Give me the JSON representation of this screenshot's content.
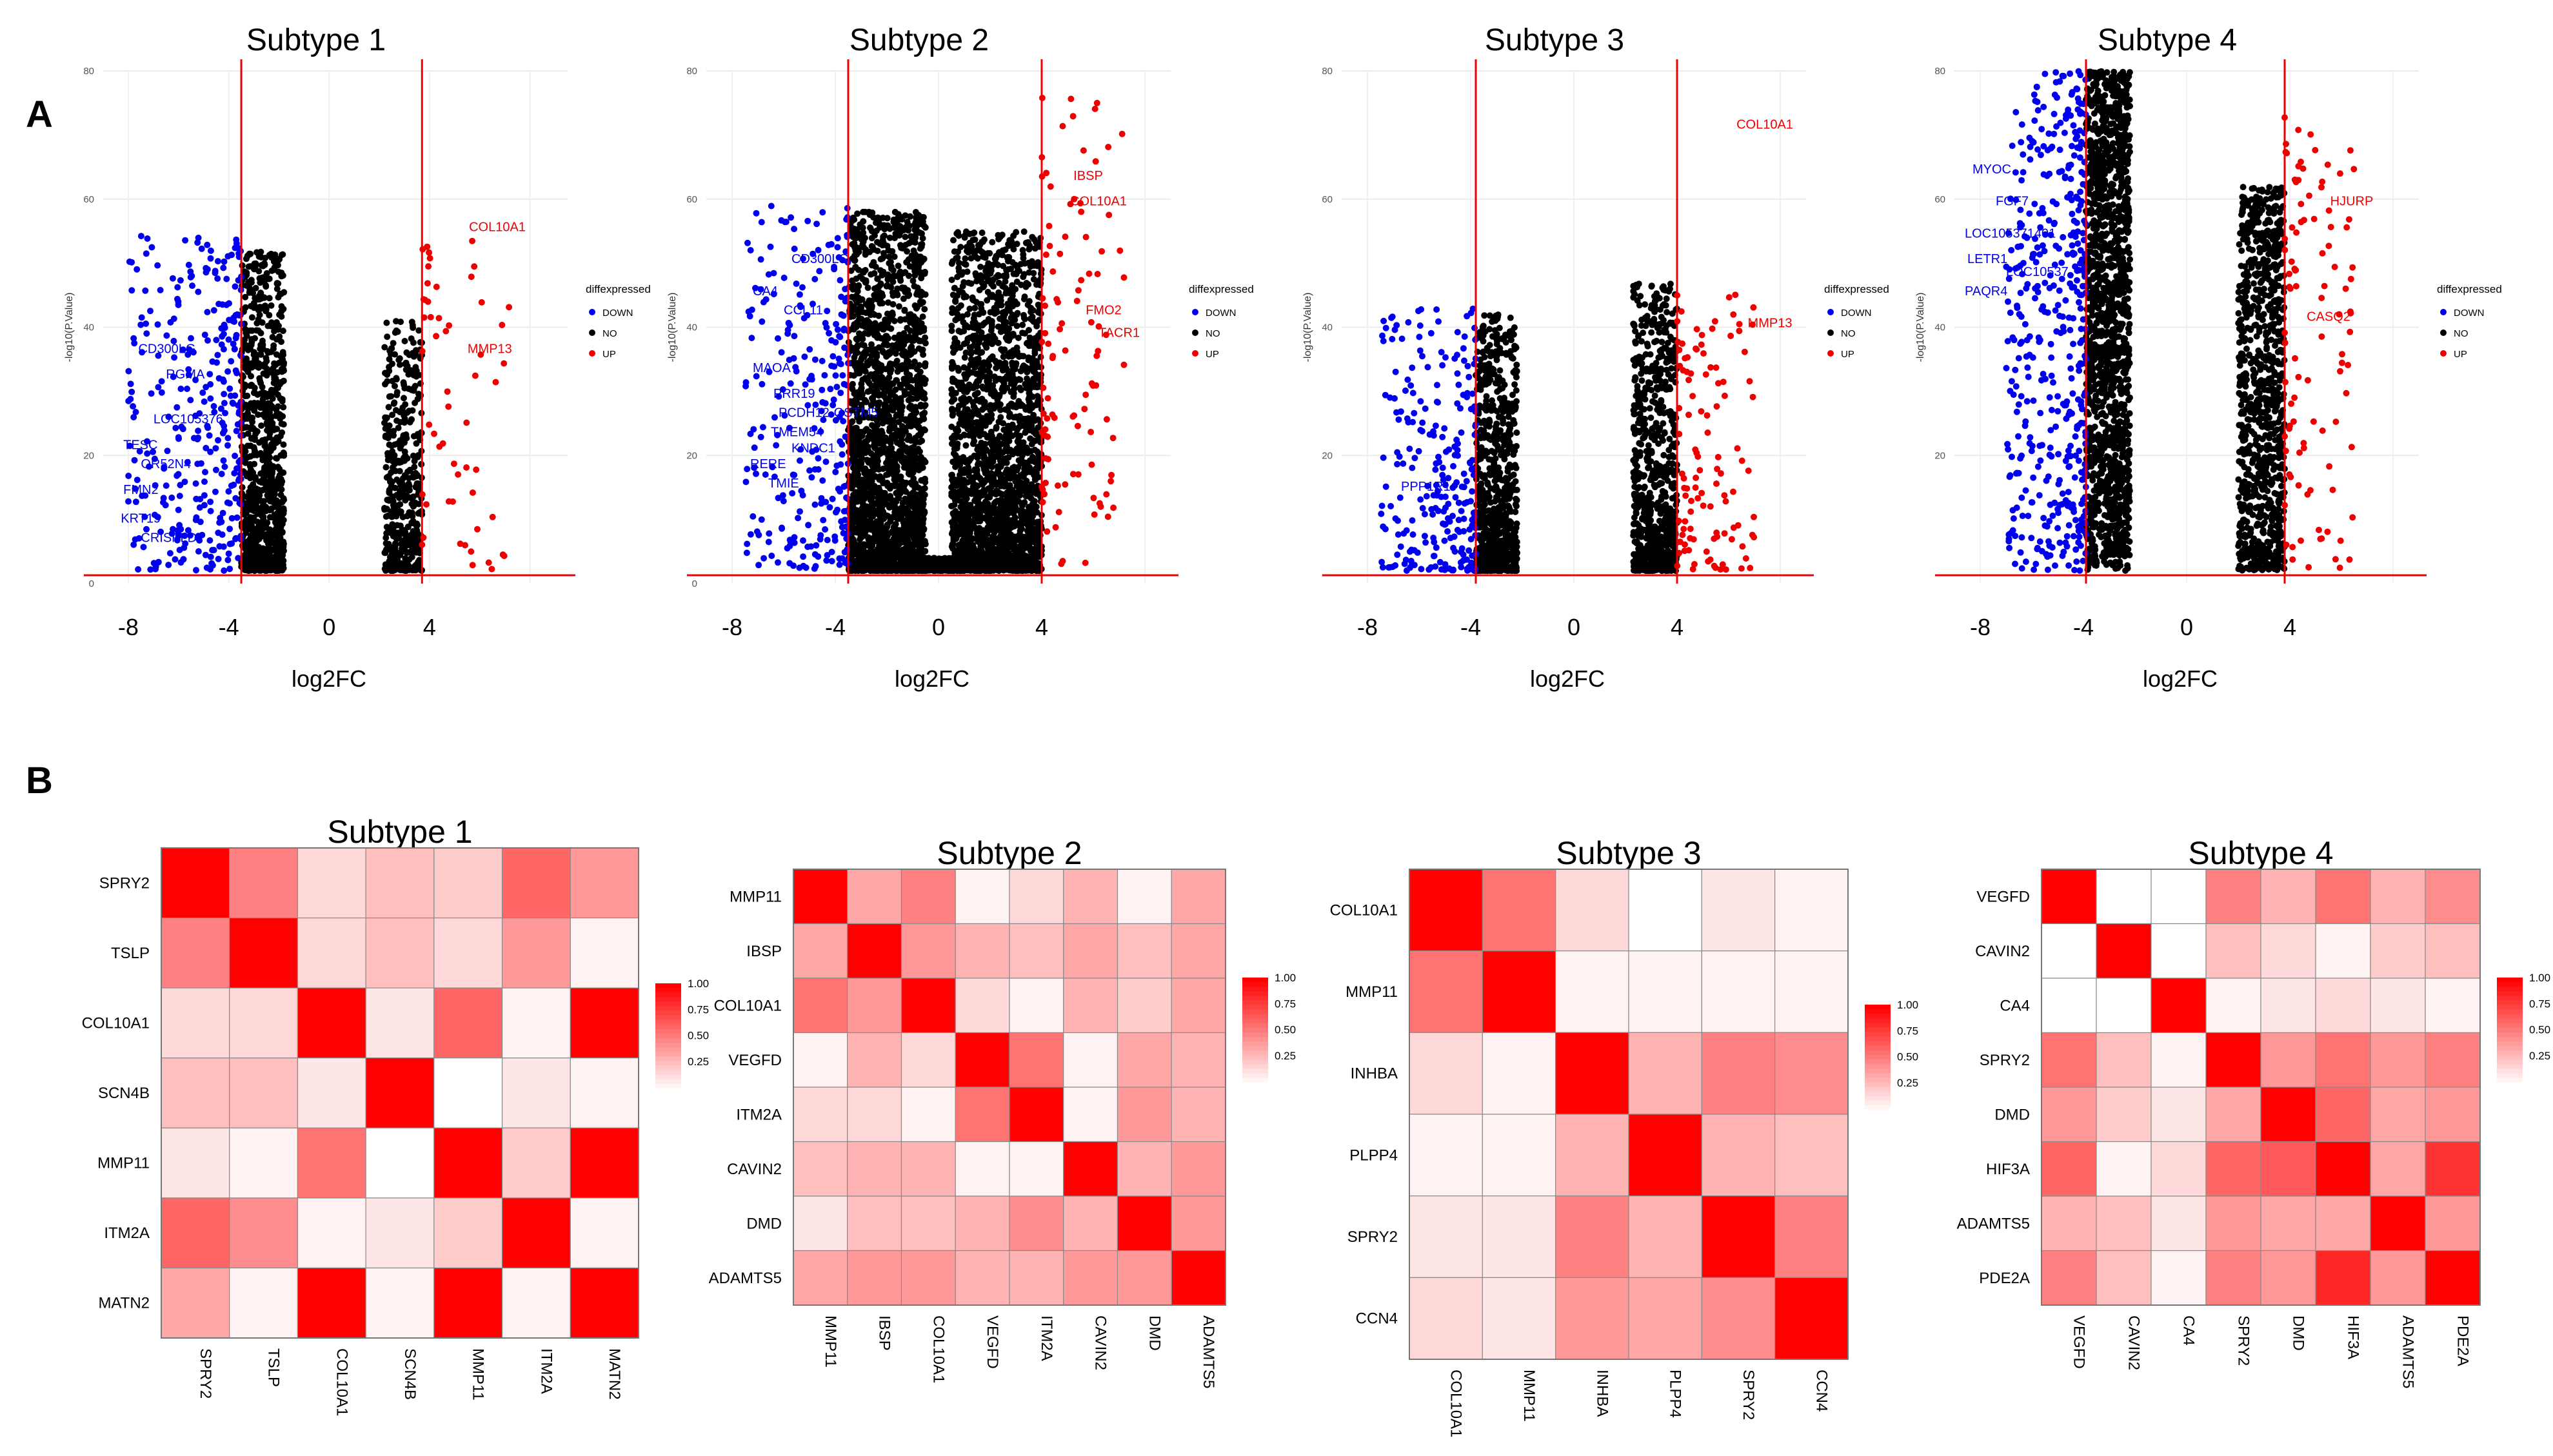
{
  "figure": {
    "panel_labels": [
      "A",
      "B"
    ]
  },
  "colors": {
    "down": "#0000ee",
    "no": "#000000",
    "up": "#ee0000",
    "threshold": "#ee0000",
    "heat_high": "#ff0000",
    "heat_low": "#ffffff",
    "cell_border": "#8a8a8a"
  },
  "legend": {
    "title": "diffexpressed",
    "items": [
      "DOWN",
      "NO",
      "UP"
    ]
  },
  "colorbar": {
    "ticks": [
      "1.00",
      "0.75",
      "0.50",
      "0.25"
    ]
  },
  "chart_data": [
    {
      "id": "volcano-1",
      "type": "scatter",
      "title": "Subtype 1",
      "xlabel": "log2FC",
      "ylabel": "-log10(P.Value)",
      "xlim": [
        -9,
        9.5
      ],
      "ylim": [
        0,
        80
      ],
      "x_ticks": [
        "-8",
        "-4",
        "0",
        "4"
      ],
      "y_ticks": [
        "0",
        "20",
        "40",
        "60",
        "80"
      ],
      "thresholds": {
        "vertical": [
          -3.5,
          3.7
        ],
        "horizontal": 1.3
      },
      "clouds": [
        {
          "group": "NO",
          "x": [
            -3.5,
            -1.8
          ],
          "peak": 52,
          "n": 900,
          "bias": 1.6
        },
        {
          "group": "DOWN",
          "x": [
            -8,
            -3.5
          ],
          "peak": 55,
          "n": 330,
          "bias": 1.3
        },
        {
          "group": "NO",
          "x": [
            2.2,
            3.7
          ],
          "peak": 41,
          "n": 430,
          "bias": 1.5
        },
        {
          "group": "UP",
          "x": [
            3.7,
            7.2
          ],
          "peak": 55,
          "n": 55,
          "bias": 1.2
        }
      ],
      "labels": [
        {
          "text": "COL10A1",
          "x": 6.7,
          "y": 55,
          "group": "UP"
        },
        {
          "text": "MMP13",
          "x": 6.4,
          "y": 36,
          "group": "UP"
        },
        {
          "text": "CD300LG",
          "x": -7.6,
          "y": 36,
          "group": "DOWN"
        },
        {
          "text": "RGMA",
          "x": -6.5,
          "y": 32,
          "group": "DOWN"
        },
        {
          "text": "LOC105376",
          "x": -7.0,
          "y": 25,
          "group": "DOWN"
        },
        {
          "text": "TESC",
          "x": -8.2,
          "y": 21,
          "group": "DOWN"
        },
        {
          "text": "OR52N4",
          "x": -7.5,
          "y": 18,
          "group": "DOWN"
        },
        {
          "text": "FMN2",
          "x": -8.2,
          "y": 14,
          "group": "DOWN"
        },
        {
          "text": "KRT19",
          "x": -8.3,
          "y": 9.5,
          "group": "DOWN"
        },
        {
          "text": "CRISPLD",
          "x": -7.5,
          "y": 6.5,
          "group": "DOWN"
        }
      ]
    },
    {
      "id": "volcano-2",
      "type": "scatter",
      "title": "Subtype 2",
      "xlabel": "log2FC",
      "ylabel": "-log10(P.Value)",
      "xlim": [
        -9,
        9
      ],
      "ylim": [
        0,
        80
      ],
      "x_ticks": [
        "-8",
        "-4",
        "0",
        "4"
      ],
      "y_ticks": [
        "0",
        "20",
        "40",
        "60",
        "80"
      ],
      "thresholds": {
        "vertical": [
          -3.5,
          4
        ],
        "horizontal": 1.3
      },
      "clouds": [
        {
          "group": "NO",
          "x": [
            -3.5,
            -0.5
          ],
          "peak": 58,
          "n": 2200,
          "bias": 1.9
        },
        {
          "group": "NO",
          "x": [
            0.5,
            4.0
          ],
          "peak": 55,
          "n": 2200,
          "bias": 1.9
        },
        {
          "group": "NO",
          "x": [
            -1.0,
            1.0
          ],
          "peak": 4,
          "n": 500,
          "bias": 1.5
        },
        {
          "group": "DOWN",
          "x": [
            -7.5,
            -3.5
          ],
          "peak": 59,
          "n": 260,
          "bias": 1.3
        },
        {
          "group": "UP",
          "x": [
            4.0,
            7.2
          ],
          "peak": 76,
          "n": 100,
          "bias": 1.1
        }
      ],
      "labels": [
        {
          "text": "IBSP",
          "x": 5.8,
          "y": 63,
          "group": "UP"
        },
        {
          "text": "COL10A1",
          "x": 6.2,
          "y": 59,
          "group": "UP"
        },
        {
          "text": "FMO2",
          "x": 6.4,
          "y": 42,
          "group": "UP"
        },
        {
          "text": "TACR1",
          "x": 7.0,
          "y": 38.5,
          "group": "UP"
        },
        {
          "text": "CD300LG",
          "x": -5.7,
          "y": 50,
          "group": "DOWN"
        },
        {
          "text": "CA4",
          "x": -7.2,
          "y": 45,
          "group": "DOWN"
        },
        {
          "text": "CCL11",
          "x": -6.0,
          "y": 42,
          "group": "DOWN"
        },
        {
          "text": "MAOA",
          "x": -7.2,
          "y": 33,
          "group": "DOWN"
        },
        {
          "text": "PRR19",
          "x": -6.4,
          "y": 29,
          "group": "DOWN"
        },
        {
          "text": "PCDH12-GSTM5",
          "x": -6.2,
          "y": 26,
          "group": "DOWN"
        },
        {
          "text": "TMEM54",
          "x": -6.5,
          "y": 23,
          "group": "DOWN"
        },
        {
          "text": "KNDC1",
          "x": -5.7,
          "y": 20.5,
          "group": "DOWN"
        },
        {
          "text": "RERE",
          "x": -7.3,
          "y": 18,
          "group": "DOWN"
        },
        {
          "text": "TMIE",
          "x": -6.6,
          "y": 15,
          "group": "DOWN"
        }
      ]
    },
    {
      "id": "volcano-3",
      "type": "scatter",
      "title": "Subtype 3",
      "xlabel": "log2FC",
      "ylabel": "-log10(P.Value)",
      "xlim": [
        -9,
        9
      ],
      "ylim": [
        0,
        80
      ],
      "x_ticks": [
        "-8",
        "-4",
        "0",
        "4"
      ],
      "y_ticks": [
        "20",
        "40",
        "60",
        "80"
      ],
      "thresholds": {
        "vertical": [
          -3.8,
          4
        ],
        "horizontal": 1.3
      },
      "clouds": [
        {
          "group": "NO",
          "x": [
            -3.8,
            -2.2
          ],
          "peak": 42,
          "n": 800,
          "bias": 2.0
        },
        {
          "group": "DOWN",
          "x": [
            -7.5,
            -3.8
          ],
          "peak": 43,
          "n": 250,
          "bias": 1.6
        },
        {
          "group": "NO",
          "x": [
            2.3,
            4.0
          ],
          "peak": 47,
          "n": 800,
          "bias": 1.9
        },
        {
          "group": "UP",
          "x": [
            4.0,
            7.0
          ],
          "peak": 46,
          "n": 110,
          "bias": 1.3
        }
      ],
      "labels": [
        {
          "text": "COL10A1",
          "x": 7.4,
          "y": 71,
          "group": "UP"
        },
        {
          "text": "MMP13",
          "x": 7.6,
          "y": 40,
          "group": "UP"
        },
        {
          "text": "PPP1R1",
          "x": -6.7,
          "y": 14.5,
          "group": "DOWN"
        }
      ]
    },
    {
      "id": "volcano-4",
      "type": "scatter",
      "title": "Subtype 4",
      "xlabel": "log2FC",
      "ylabel": "-log10(P.Value)",
      "xlim": [
        -9,
        9
      ],
      "ylim": [
        0,
        80
      ],
      "x_ticks": [
        "-8",
        "-4",
        "0",
        "4"
      ],
      "y_ticks": [
        "20",
        "40",
        "60",
        "80"
      ],
      "thresholds": {
        "vertical": [
          -3.9,
          3.8
        ],
        "horizontal": 1.3
      },
      "clouds": [
        {
          "group": "NO",
          "x": [
            -3.9,
            -2.2
          ],
          "peak": 80,
          "n": 1500,
          "bias": 1.0
        },
        {
          "group": "DOWN",
          "x": [
            -7.0,
            -3.9
          ],
          "peak": 80,
          "n": 450,
          "bias": 1.0
        },
        {
          "group": "NO",
          "x": [
            2.0,
            3.8
          ],
          "peak": 62,
          "n": 900,
          "bias": 1.2
        },
        {
          "group": "UP",
          "x": [
            3.8,
            6.5
          ],
          "peak": 73,
          "n": 100,
          "bias": 1.0
        }
      ],
      "labels": [
        {
          "text": "HJURP",
          "x": 6.4,
          "y": 59,
          "group": "UP"
        },
        {
          "text": "CASQ2",
          "x": 5.5,
          "y": 41,
          "group": "UP"
        },
        {
          "text": "MYOC",
          "x": -8.3,
          "y": 64,
          "group": "DOWN"
        },
        {
          "text": "FGF7",
          "x": -7.4,
          "y": 59,
          "group": "DOWN"
        },
        {
          "text": "LOC105371401",
          "x": -8.6,
          "y": 54,
          "group": "DOWN"
        },
        {
          "text": "LETR1",
          "x": -8.5,
          "y": 50,
          "group": "DOWN"
        },
        {
          "text": "LOC10537",
          "x": -7.0,
          "y": 48,
          "group": "DOWN"
        },
        {
          "text": "PAQR4",
          "x": -8.6,
          "y": 45,
          "group": "DOWN"
        }
      ]
    },
    {
      "id": "heatmap-1",
      "type": "heatmap",
      "title": "Subtype 1",
      "genes": [
        "SPRY2",
        "TSLP",
        "COL10A1",
        "SCN4B",
        "MMP11",
        "ITM2A",
        "MATN2"
      ],
      "matrix": [
        [
          1,
          0.5,
          0.15,
          0.25,
          0.2,
          0.6,
          0.4
        ],
        [
          0.5,
          1,
          0.15,
          0.25,
          0.15,
          0.4,
          0.05
        ],
        [
          0.15,
          0.15,
          1,
          0.1,
          0.6,
          0.05,
          1
        ],
        [
          0.25,
          0.25,
          0.1,
          1,
          0,
          0.1,
          0.05
        ],
        [
          0.1,
          0.05,
          0.55,
          0,
          1,
          0.2,
          1
        ],
        [
          0.6,
          0.45,
          0.05,
          0.1,
          0.2,
          1,
          0.05
        ],
        [
          0.35,
          0.05,
          1,
          0.05,
          1,
          0.05,
          1
        ]
      ]
    },
    {
      "id": "heatmap-2",
      "type": "heatmap",
      "title": "Subtype 2",
      "genes": [
        "MMP11",
        "IBSP",
        "COL10A1",
        "VEGFD",
        "ITM2A",
        "CAVIN2",
        "DMD",
        "ADAMTS5"
      ],
      "matrix": [
        [
          1,
          0.35,
          0.5,
          0.05,
          0.15,
          0.3,
          0.05,
          0.35
        ],
        [
          0.35,
          1,
          0.4,
          0.3,
          0.25,
          0.35,
          0.25,
          0.35
        ],
        [
          0.55,
          0.4,
          1,
          0.15,
          0.05,
          0.3,
          0.2,
          0.35
        ],
        [
          0.05,
          0.3,
          0.15,
          1,
          0.55,
          0.05,
          0.35,
          0.3
        ],
        [
          0.15,
          0.15,
          0.05,
          0.55,
          1,
          0.05,
          0.4,
          0.3
        ],
        [
          0.25,
          0.3,
          0.3,
          0.05,
          0.05,
          1,
          0.3,
          0.4
        ],
        [
          0.1,
          0.25,
          0.25,
          0.3,
          0.45,
          0.3,
          1,
          0.4
        ],
        [
          0.35,
          0.4,
          0.4,
          0.3,
          0.3,
          0.4,
          0.4,
          1
        ]
      ]
    },
    {
      "id": "heatmap-3",
      "type": "heatmap",
      "title": "Subtype 3",
      "genes": [
        "COL10A1",
        "MMP11",
        "INHBA",
        "PLPP4",
        "SPRY2",
        "CCN4"
      ],
      "matrix": [
        [
          1,
          0.55,
          0.15,
          0,
          0.1,
          0.05
        ],
        [
          0.55,
          1,
          0.05,
          0.05,
          0.05,
          0.05
        ],
        [
          0.15,
          0.05,
          1,
          0.3,
          0.5,
          0.45
        ],
        [
          0.05,
          0.05,
          0.3,
          1,
          0.3,
          0.25
        ],
        [
          0.1,
          0.1,
          0.5,
          0.3,
          1,
          0.5
        ],
        [
          0.15,
          0.1,
          0.4,
          0.35,
          0.45,
          1
        ]
      ]
    },
    {
      "id": "heatmap-4",
      "type": "heatmap",
      "title": "Subtype 4",
      "genes": [
        "VEGFD",
        "CAVIN2",
        "CA4",
        "SPRY2",
        "DMD",
        "HIF3A",
        "ADAMTS5",
        "PDE2A"
      ],
      "matrix": [
        [
          1,
          0,
          0,
          0.5,
          0.3,
          0.55,
          0.3,
          0.45
        ],
        [
          0,
          1,
          0,
          0.25,
          0.15,
          0.05,
          0.2,
          0.25
        ],
        [
          0,
          0,
          1,
          0.05,
          0.1,
          0.15,
          0.1,
          0.05
        ],
        [
          0.55,
          0.25,
          0.05,
          1,
          0.4,
          0.55,
          0.4,
          0.5
        ],
        [
          0.4,
          0.2,
          0.1,
          0.35,
          1,
          0.6,
          0.35,
          0.4
        ],
        [
          0.6,
          0.05,
          0.15,
          0.6,
          0.65,
          1,
          0.35,
          0.8
        ],
        [
          0.3,
          0.25,
          0.1,
          0.4,
          0.35,
          0.35,
          1,
          0.4
        ],
        [
          0.5,
          0.25,
          0.05,
          0.5,
          0.4,
          0.85,
          0.4,
          1
        ]
      ]
    }
  ]
}
